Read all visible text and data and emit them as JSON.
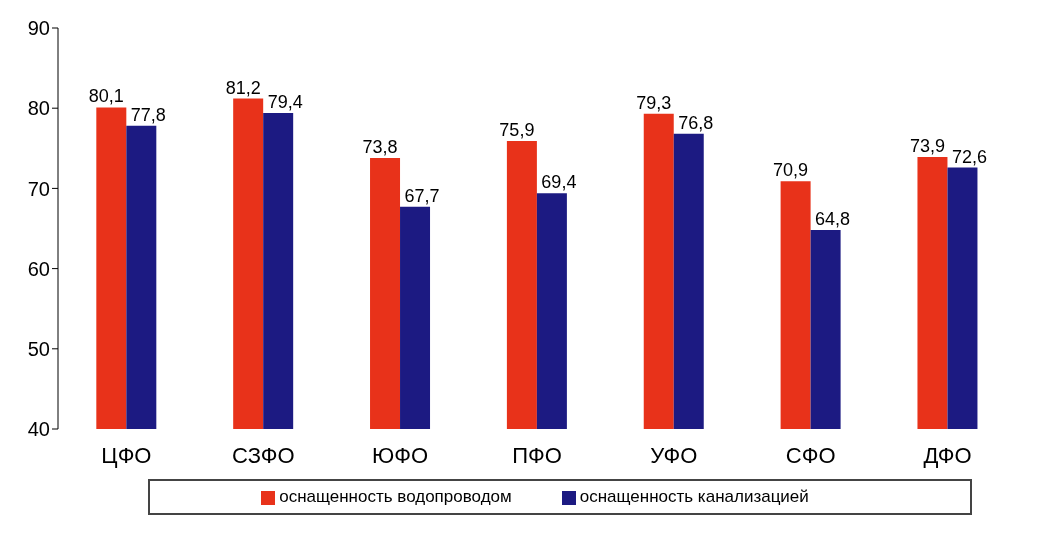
{
  "chart_data": {
    "type": "bar",
    "categories": [
      "ЦФО",
      "СЗФО",
      "ЮФО",
      "ПФО",
      "УФО",
      "СФО",
      "ДФО"
    ],
    "series": [
      {
        "name": "оснащенность водопроводом",
        "color": "#e8321a",
        "values": [
          80.1,
          81.2,
          73.8,
          75.9,
          79.3,
          70.9,
          73.9
        ],
        "value_labels": [
          "80,1",
          "81,2",
          "73,8",
          "75,9",
          "79,3",
          "70,9",
          "73,9"
        ]
      },
      {
        "name": "оснащенность канализацией",
        "color": "#1c1a82",
        "values": [
          77.8,
          79.4,
          67.7,
          69.4,
          76.8,
          64.8,
          72.6
        ],
        "value_labels": [
          "77,8",
          "79,4",
          "67,7",
          "69,4",
          "76,8",
          "64,8",
          "72,6"
        ]
      }
    ],
    "ylim": [
      40,
      90
    ],
    "yticks": [
      40,
      50,
      60,
      70,
      80,
      90
    ],
    "grid": false,
    "legend": "bottom"
  }
}
